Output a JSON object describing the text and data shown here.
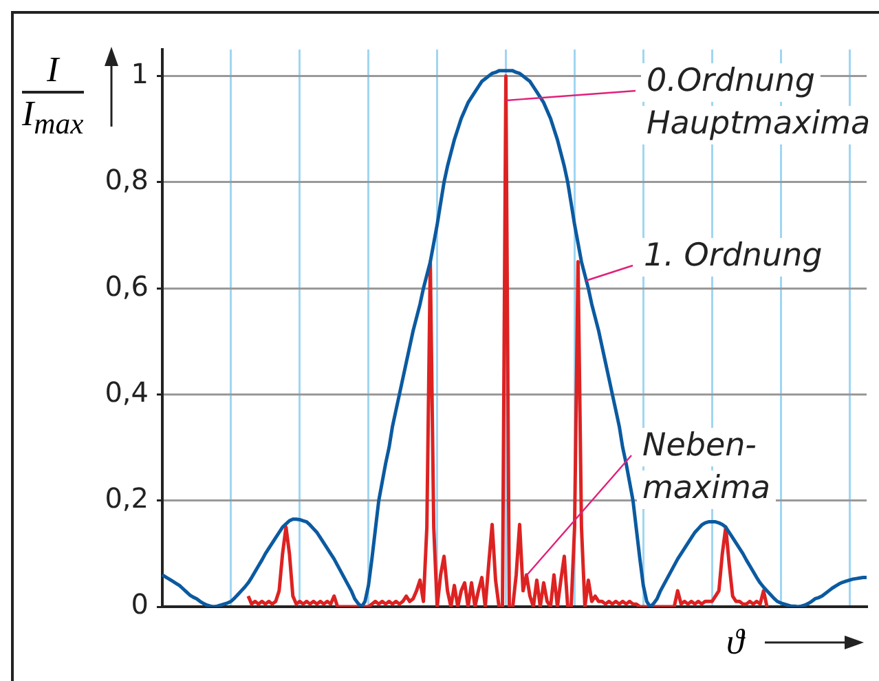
{
  "chart_data": {
    "type": "line",
    "ylabel": "I\nI$_{max}$",
    "xlabel": "ϑ",
    "categories": [
      null,
      null,
      null,
      null,
      null,
      null,
      null,
      null,
      null,
      null,
      null,
      null,
      null,
      null,
      null,
      null,
      null,
      null,
      null,
      null,
      null,
      null,
      null,
      null,
      null,
      null,
      null,
      null,
      null,
      null,
      null,
      null,
      null,
      null,
      null,
      null,
      null,
      null,
      null,
      null,
      null,
      null,
      null,
      null,
      null,
      null,
      null,
      null,
      null,
      null,
      null,
      null,
      null,
      null,
      null,
      null,
      null,
      null,
      null,
      null,
      null,
      null,
      null,
      null,
      null,
      null,
      null,
      null,
      null,
      null,
      null,
      null,
      null,
      null,
      null,
      null,
      null,
      null,
      null,
      null,
      null,
      null,
      null,
      null,
      null,
      null,
      null,
      null,
      null,
      null,
      null,
      null,
      null,
      null,
      null,
      null,
      null,
      null,
      null,
      null,
      null,
      null,
      null,
      null,
      null,
      null,
      null,
      null,
      null,
      null,
      null,
      null,
      null,
      null,
      null,
      null,
      null,
      null,
      null,
      null,
      null,
      null,
      null,
      null,
      null,
      null,
      null,
      null,
      null,
      null,
      null,
      null,
      null,
      null,
      null,
      null,
      null,
      null,
      null,
      null,
      null,
      null,
      null,
      null,
      null,
      null,
      null,
      null,
      null,
      null,
      null,
      null,
      null,
      null,
      null,
      null,
      null,
      null,
      null,
      null,
      null,
      null,
      null,
      null,
      null,
      null,
      null,
      null,
      null,
      null,
      null,
      null,
      null,
      null,
      null,
      null,
      null,
      null,
      null,
      null,
      null,
      null,
      null,
      null,
      null,
      null,
      null,
      null,
      null,
      null,
      null,
      null,
      null,
      null,
      null,
      null,
      null,
      null,
      null,
      null,
      null,
      null,
      null,
      null,
      null,
      null
    ],
    "ylim": [
      0,
      1.05
    ],
    "yticks": [
      0,
      {
        "value": 0.2,
        "label": "0,2"
      },
      {
        "value": 0.4,
        "label": "0,4"
      },
      {
        "value": 0.6,
        "label": "0,6"
      },
      {
        "value": 0.8,
        "label": "0,8"
      },
      1
    ],
    "tick_labels": "y",
    "grid": true,
    "legend": false,
    "marker": "none",
    "line_style": "solid",
    "series": [
      {
        "color": "#0b5aa0",
        "values": [
          0.06,
          0.056,
          0.052,
          0.048,
          0.044,
          0.04,
          0.034,
          0.028,
          0.022,
          0.018,
          0.015,
          0.01,
          0.006,
          0.003,
          0.001,
          0,
          0.001,
          0.003,
          0.005,
          0.007,
          0.01,
          0.016,
          0.023,
          0.03,
          0.037,
          0.045,
          0.055,
          0.066,
          0.077,
          0.088,
          0.1,
          0.11,
          0.12,
          0.13,
          0.14,
          0.15,
          0.156,
          0.162,
          0.165,
          0.165,
          0.164,
          0.162,
          0.16,
          0.154,
          0.147,
          0.14,
          0.13,
          0.12,
          0.11,
          0.1,
          0.09,
          0.078,
          0.066,
          0.054,
          0.042,
          0.03,
          0.015,
          0.006,
          0,
          0.01,
          0.04,
          0.09,
          0.145,
          0.2,
          0.235,
          0.27,
          0.3,
          0.34,
          0.37,
          0.4,
          0.43,
          0.46,
          0.49,
          0.52,
          0.545,
          0.57,
          0.6,
          0.625,
          0.65,
          0.685,
          0.72,
          0.76,
          0.8,
          0.83,
          0.855,
          0.88,
          0.9,
          0.92,
          0.935,
          0.95,
          0.96,
          0.97,
          0.98,
          0.99,
          0.995,
          1,
          1.005,
          1.007,
          1.01,
          1.01,
          1.01,
          1.01,
          1.01,
          1.007,
          1.005,
          1,
          0.995,
          0.99,
          0.98,
          0.97,
          0.96,
          0.95,
          0.935,
          0.92,
          0.9,
          0.88,
          0.855,
          0.83,
          0.8,
          0.76,
          0.72,
          0.685,
          0.65,
          0.625,
          0.6,
          0.57,
          0.545,
          0.52,
          0.49,
          0.46,
          0.43,
          0.4,
          0.37,
          0.34,
          0.3,
          0.27,
          0.235,
          0.2,
          0.145,
          0.09,
          0.04,
          0.01,
          0,
          0.006,
          0.015,
          0.03,
          0.042,
          0.054,
          0.066,
          0.078,
          0.09,
          0.1,
          0.11,
          0.12,
          0.13,
          0.14,
          0.147,
          0.154,
          0.158,
          0.16,
          0.16,
          0.16,
          0.158,
          0.155,
          0.15,
          0.14,
          0.13,
          0.12,
          0.11,
          0.1,
          0.088,
          0.077,
          0.066,
          0.055,
          0.045,
          0.037,
          0.03,
          0.023,
          0.016,
          0.01,
          0.007,
          0.005,
          0.003,
          0.001,
          0.001,
          0,
          0.001,
          0.003,
          0.006,
          0.01,
          0.015,
          0.017,
          0.02,
          0.025,
          0.03,
          0.035,
          0.039,
          0.043,
          0.046,
          0.048,
          0.05,
          0.052,
          0.053,
          0.054,
          0.055,
          0.055
        ]
      },
      {
        "color": "#dd2222",
        "values": [
          null,
          null,
          null,
          null,
          null,
          null,
          null,
          null,
          null,
          null,
          null,
          null,
          null,
          null,
          null,
          null,
          null,
          null,
          null,
          null,
          null,
          null,
          null,
          null,
          null,
          0.02,
          0.005,
          0.01,
          0.005,
          0.01,
          0.005,
          0.01,
          0.005,
          0.01,
          0.03,
          0.1,
          0.15,
          0.1,
          0.02,
          0.005,
          0.01,
          0.005,
          0.01,
          0.005,
          0.01,
          0.005,
          0.01,
          0.005,
          0.01,
          0.005,
          0.02,
          0,
          0,
          0,
          0,
          0,
          0,
          0,
          0,
          0,
          0,
          0.005,
          0.01,
          0.005,
          0.01,
          0.005,
          0.01,
          0.005,
          0.01,
          0.005,
          0.01,
          0.02,
          0.01,
          0.015,
          0.03,
          0.05,
          0.01,
          0.15,
          0.65,
          0.15,
          0,
          0.06,
          0.095,
          0.03,
          0,
          0.04,
          0,
          0.03,
          0.045,
          0,
          0.045,
          0,
          0.03,
          0.055,
          0,
          0.08,
          0.155,
          0.05,
          0,
          0,
          1,
          0,
          0,
          0.06,
          0.155,
          0.03,
          0.06,
          0.02,
          0,
          0.05,
          0,
          0.045,
          0.01,
          0,
          0.06,
          0,
          0.05,
          0.095,
          0,
          0,
          0.15,
          0.65,
          0.15,
          0,
          0.05,
          0.01,
          0.02,
          0.01,
          0.01,
          0.005,
          0.01,
          0.005,
          0.01,
          0.005,
          0.01,
          0.005,
          0.01,
          0.005,
          0.005,
          0,
          0,
          0,
          0,
          0,
          0,
          0,
          0,
          0,
          0,
          0,
          0.03,
          0.005,
          0.01,
          0.005,
          0.01,
          0.005,
          0.01,
          0.005,
          0.01,
          0.01,
          0.01,
          0.02,
          0.03,
          0.1,
          0.15,
          0.08,
          0.02,
          0.01,
          0.01,
          0.005,
          0.005,
          0.01,
          0.005,
          0.01,
          0.005,
          0.03,
          0,
          null,
          null,
          null,
          null,
          null,
          null,
          null,
          null,
          null,
          null,
          null,
          null,
          null,
          null,
          null,
          null,
          null,
          null,
          null,
          null,
          null,
          null,
          null,
          null,
          null,
          null,
          null,
          null,
          null
        ]
      }
    ],
    "annotations": [
      "0.Ordnung\nHauptmaxima",
      "1. Ordnung",
      "Neben-\nmaxima"
    ]
  }
}
